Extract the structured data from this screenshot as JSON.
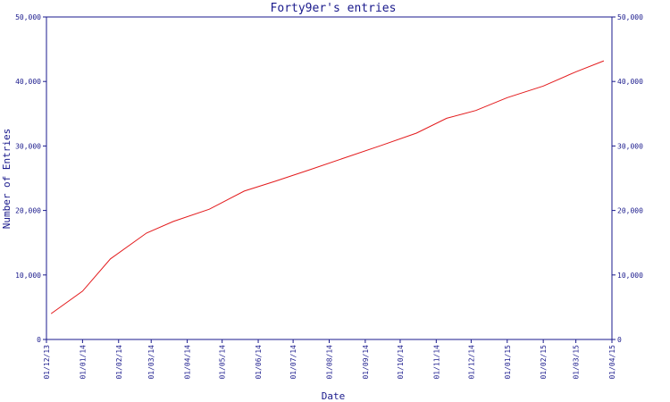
{
  "chart_data": {
    "type": "line",
    "title": "Forty9er's entries",
    "xlabel": "Date",
    "ylabel": "Number of Entries",
    "ylim": [
      0,
      50000
    ],
    "yticks": [
      0,
      10000,
      20000,
      30000,
      40000,
      50000
    ],
    "ytick_labels": [
      "0",
      "10,000",
      "20,000",
      "30,000",
      "40,000",
      "50,000"
    ],
    "right_axis": true,
    "grid": false,
    "xlim": [
      "01/12/13",
      "01/04/15"
    ],
    "xtick_labels": [
      "01/12/13",
      "01/01/14",
      "01/02/14",
      "01/03/14",
      "01/04/14",
      "01/05/14",
      "01/06/14",
      "01/07/14",
      "01/08/14",
      "01/09/14",
      "01/10/14",
      "01/11/14",
      "01/12/14",
      "01/01/15",
      "01/02/15",
      "01/03/15",
      "01/04/15"
    ],
    "series": [
      {
        "color": "#e31a1c",
        "points": [
          {
            "x": "2013-12-05",
            "y": 4000
          },
          {
            "x": "2014-01-01",
            "y": 7500
          },
          {
            "x": "2014-01-25",
            "y": 12500
          },
          {
            "x": "2014-02-25",
            "y": 16500
          },
          {
            "x": "2014-03-20",
            "y": 18300
          },
          {
            "x": "2014-04-20",
            "y": 20200
          },
          {
            "x": "2014-05-20",
            "y": 23000
          },
          {
            "x": "2014-06-15",
            "y": 24500
          },
          {
            "x": "2014-07-15",
            "y": 26300
          },
          {
            "x": "2014-08-15",
            "y": 28200
          },
          {
            "x": "2014-09-15",
            "y": 30100
          },
          {
            "x": "2014-10-15",
            "y": 32000
          },
          {
            "x": "2014-11-10",
            "y": 34300
          },
          {
            "x": "2014-12-05",
            "y": 35500
          },
          {
            "x": "2015-01-01",
            "y": 37500
          },
          {
            "x": "2015-02-01",
            "y": 39300
          },
          {
            "x": "2015-03-01",
            "y": 41500
          },
          {
            "x": "2015-03-25",
            "y": 43200
          }
        ]
      }
    ]
  }
}
